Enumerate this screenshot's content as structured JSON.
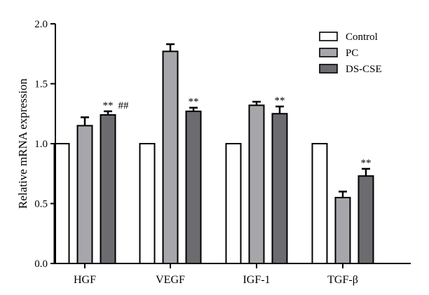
{
  "chart_data": {
    "type": "bar",
    "title": "",
    "xlabel": "",
    "ylabel": "Relative mRNA expression",
    "ylim": [
      0,
      2.0
    ],
    "yticks": [
      0.0,
      0.5,
      1.0,
      1.5,
      2.0
    ],
    "ytick_labels": [
      "0.0",
      "0.5",
      "1.0",
      "1.5",
      "2.0"
    ],
    "categories": [
      "HGF",
      "VEGF",
      "IGF-1",
      "TGF-β"
    ],
    "series": [
      {
        "name": "Control",
        "values": [
          1.0,
          1.0,
          1.0,
          1.0
        ],
        "errors": [
          0,
          0,
          0,
          0
        ],
        "color": "#ffffff"
      },
      {
        "name": "PC",
        "values": [
          1.15,
          1.77,
          1.32,
          0.55
        ],
        "errors": [
          0.07,
          0.06,
          0.03,
          0.05
        ],
        "color": "#a6a6ab"
      },
      {
        "name": "DS-CSE",
        "values": [
          1.24,
          1.27,
          1.25,
          0.73
        ],
        "errors": [
          0.03,
          0.03,
          0.06,
          0.06
        ],
        "color": "#6b6b70"
      }
    ],
    "annotations": [
      {
        "category": 0,
        "series": 2,
        "text": "**",
        "text2": "##"
      },
      {
        "category": 1,
        "series": 2,
        "text": "**"
      },
      {
        "category": 2,
        "series": 2,
        "text": "**"
      },
      {
        "category": 3,
        "series": 2,
        "text": "**"
      }
    ],
    "legend": {
      "placement": "top-right"
    },
    "grid": false
  }
}
